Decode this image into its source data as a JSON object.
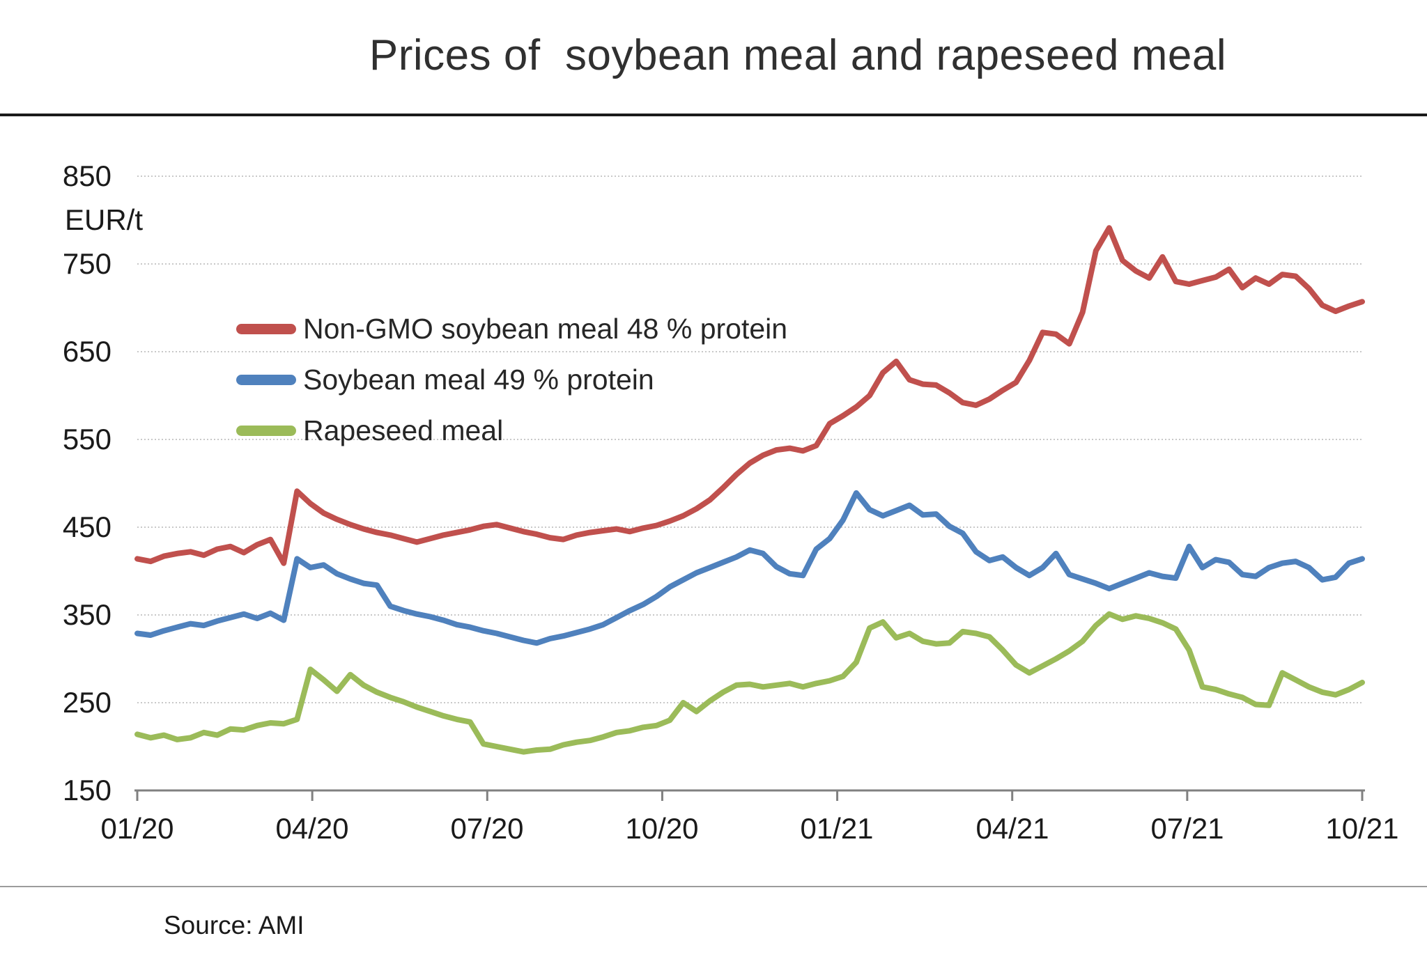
{
  "title": "Prices of  soybean meal and rapeseed meal",
  "source": "Source: AMI",
  "axis": {
    "unit_label": "EUR/t",
    "y_ticks": [
      "850",
      "750",
      "650",
      "550",
      "450",
      "350",
      "250",
      "150"
    ],
    "x_ticks": [
      "01/20",
      "04/20",
      "07/20",
      "10/20",
      "01/21",
      "04/21",
      "07/21",
      "10/21"
    ]
  },
  "colors": {
    "background": "#ffffff",
    "gridline": "#c8c8c8",
    "axis_line": "#808080",
    "text": "#262626",
    "top_rule": "#1a1a1a",
    "bottom_rule": "#9c9c9c"
  },
  "chart_data": {
    "type": "line",
    "title": "Prices of  soybean meal and rapeseed meal",
    "xlabel": "",
    "ylabel": "EUR/t",
    "ylim": [
      150,
      850
    ],
    "y_gridlines": [
      250,
      350,
      450,
      550,
      650,
      750,
      850
    ],
    "grid": "horizontal dotted",
    "legend_position": "inside top-left",
    "x_tick_labels": [
      "01/20",
      "04/20",
      "07/20",
      "10/20",
      "01/21",
      "04/21",
      "07/21",
      "10/21"
    ],
    "x_unit": "weekly, 01/2020 - 10/2021",
    "series": [
      {
        "name": "Non-GMO soybean meal 48 % protein",
        "color": "#C0504D",
        "values": [
          414,
          411,
          417,
          420,
          422,
          418,
          425,
          428,
          421,
          430,
          436,
          409,
          491,
          477,
          466,
          459,
          453,
          448,
          444,
          441,
          437,
          433,
          437,
          441,
          444,
          447,
          451,
          453,
          449,
          445,
          442,
          438,
          436,
          441,
          444,
          446,
          448,
          445,
          449,
          452,
          457,
          463,
          471,
          481,
          495,
          510,
          523,
          532,
          538,
          540,
          537,
          543,
          568,
          577,
          587,
          600,
          626,
          639,
          618,
          613,
          612,
          603,
          592,
          589,
          596,
          606,
          615,
          640,
          672,
          670,
          659,
          695,
          765,
          791,
          754,
          742,
          734,
          758,
          730,
          727,
          731,
          735,
          744,
          723,
          734,
          727,
          738,
          736,
          722,
          703,
          696,
          702,
          707
        ]
      },
      {
        "name": "Soybean meal 49 % protein",
        "color": "#4F81BD",
        "values": [
          329,
          327,
          332,
          336,
          340,
          338,
          343,
          347,
          351,
          346,
          352,
          344,
          414,
          404,
          407,
          397,
          391,
          386,
          384,
          360,
          355,
          351,
          348,
          344,
          339,
          336,
          332,
          329,
          325,
          321,
          318,
          323,
          326,
          330,
          334,
          339,
          347,
          355,
          362,
          371,
          382,
          390,
          398,
          404,
          410,
          416,
          424,
          420,
          405,
          397,
          395,
          425,
          437,
          458,
          489,
          470,
          463,
          469,
          475,
          464,
          465,
          451,
          443,
          422,
          412,
          416,
          404,
          395,
          404,
          420,
          396,
          391,
          386,
          380,
          386,
          392,
          398,
          394,
          392,
          428,
          404,
          413,
          410,
          396,
          394,
          404,
          409,
          411,
          404,
          390,
          393,
          409,
          414
        ]
      },
      {
        "name": "Rapeseed meal",
        "color": "#9BBB59",
        "values": [
          214,
          210,
          213,
          208,
          210,
          216,
          213,
          220,
          219,
          224,
          227,
          226,
          231,
          288,
          276,
          263,
          282,
          270,
          262,
          256,
          251,
          245,
          240,
          235,
          231,
          228,
          203,
          200,
          197,
          194,
          196,
          197,
          202,
          205,
          207,
          211,
          216,
          218,
          222,
          224,
          230,
          250,
          240,
          252,
          262,
          270,
          271,
          268,
          270,
          272,
          268,
          272,
          275,
          280,
          296,
          335,
          342,
          324,
          329,
          320,
          317,
          318,
          331,
          329,
          325,
          310,
          293,
          284,
          292,
          300,
          309,
          320,
          338,
          351,
          345,
          349,
          346,
          341,
          334,
          310,
          268,
          265,
          260,
          256,
          248,
          247,
          284,
          276,
          268,
          262,
          259,
          265,
          273
        ]
      }
    ]
  }
}
